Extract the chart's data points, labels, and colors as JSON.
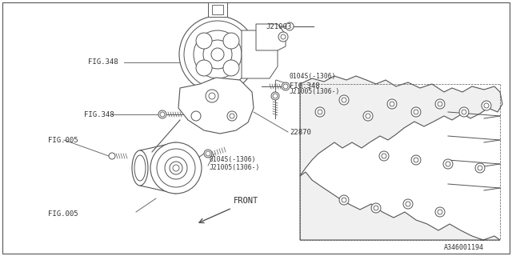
{
  "bg_color": "#ffffff",
  "line_color": "#555555",
  "text_color": "#333333",
  "diagram_number": "A346001194",
  "labels": {
    "fig348_pump": "FIG.348",
    "fig348_bolt_top": "FIG.348",
    "fig348_bolt_left": "FIG.348",
    "fig005_top": "FIG.005",
    "fig005_bot": "FIG.005",
    "j21003": "J21003",
    "part1a": "0104S(-1306)",
    "part1b": "J21005(1306-)",
    "part2a": "0104S(-1306)",
    "part2b": "J21005(1306-)",
    "part3": "22870",
    "front": "FRONT"
  },
  "figsize": [
    6.4,
    3.2
  ],
  "dpi": 100
}
